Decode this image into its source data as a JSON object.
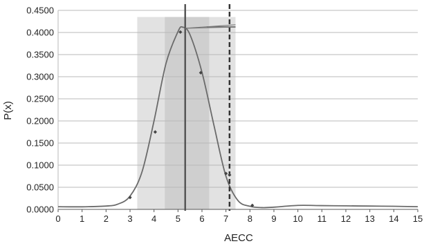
{
  "chart_data": {
    "type": "line",
    "title": "",
    "xlabel": "AECC",
    "ylabel": "P(x)",
    "xlim": [
      0,
      15
    ],
    "ylim": [
      0,
      0.45
    ],
    "x_ticks": [
      "0",
      "1",
      "2",
      "3",
      "4",
      "5",
      "6",
      "7",
      "8",
      "9",
      "10",
      "11",
      "12",
      "13",
      "14",
      "15"
    ],
    "y_ticks": [
      "0.0000",
      "0.0500",
      "0.1000",
      "0.1500",
      "0.2000",
      "0.2500",
      "0.3000",
      "0.3500",
      "0.4000",
      "0.4500"
    ],
    "grid": "horizontal",
    "legend": "none",
    "bands": [
      {
        "name": "outer",
        "x0": 3.3,
        "x1": 7.4,
        "color": "#e2e2e2"
      },
      {
        "name": "inner",
        "x0": 4.45,
        "x1": 6.3,
        "color": "#cfcfcf"
      }
    ],
    "vertical_lines": [
      {
        "name": "solid-line",
        "x": 5.3,
        "style": "solid",
        "color": "#555555"
      },
      {
        "name": "dashed-line",
        "x": 7.15,
        "style": "dashed",
        "color": "#333333"
      }
    ],
    "points": {
      "x": [
        3.0,
        4.05,
        5.1,
        5.95,
        7.0,
        7.15,
        8.1
      ],
      "y": [
        0.027,
        0.175,
        0.401,
        0.309,
        0.081,
        0.078,
        0.009
      ]
    },
    "curve": {
      "x": [
        0,
        1,
        2,
        2.5,
        3,
        3.5,
        4,
        4.5,
        5,
        5.2,
        5.5,
        6,
        6.5,
        7,
        7.5,
        8,
        8.5,
        9,
        10,
        11,
        12,
        13,
        14,
        15
      ],
      "y": [
        0.006,
        0.0058,
        0.0075,
        0.012,
        0.03,
        0.085,
        0.2,
        0.33,
        0.402,
        0.412,
        0.395,
        0.31,
        0.19,
        0.075,
        0.02,
        0.007,
        0.004,
        0.005,
        0.009,
        0.0085,
        0.008,
        0.0075,
        0.007,
        0.006
      ]
    },
    "series_color": "#6a6a6a"
  }
}
